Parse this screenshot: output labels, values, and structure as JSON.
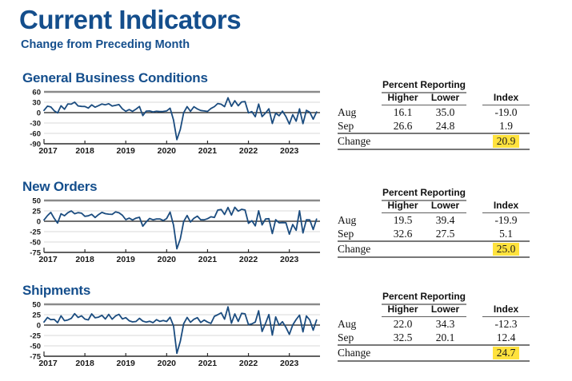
{
  "page": {
    "title": "Current Indicators",
    "subtitle": "Change from Preceding Month"
  },
  "colors": {
    "heading_blue": "#144e8c",
    "line_blue": "#1b4c7f",
    "highlight_yellow": "#ffe23d",
    "grid_gray": "#d8d8d8",
    "top_rule_gray": "#8a8a8a"
  },
  "sections": [
    {
      "title": "General Business Conditions",
      "table": {
        "group_header": "Percent Reporting",
        "col_headers": [
          "Higher",
          "Lower",
          "Index"
        ],
        "rows": [
          {
            "label": "Aug",
            "higher": "16.1",
            "lower": "35.0",
            "index": "-19.0"
          },
          {
            "label": "Sep",
            "higher": "26.6",
            "lower": "24.8",
            "index": "1.9"
          },
          {
            "label": "Change",
            "index": "20.9",
            "highlighted": true
          }
        ]
      }
    },
    {
      "title": "New Orders",
      "table": {
        "group_header": "Percent Reporting",
        "col_headers": [
          "Higher",
          "Lower",
          "Index"
        ],
        "rows": [
          {
            "label": "Aug",
            "higher": "19.5",
            "lower": "39.4",
            "index": "-19.9"
          },
          {
            "label": "Sep",
            "higher": "32.6",
            "lower": "27.5",
            "index": "5.1"
          },
          {
            "label": "Change",
            "index": "25.0",
            "highlighted": true
          }
        ]
      }
    },
    {
      "title": "Shipments",
      "table": {
        "group_header": "Percent Reporting",
        "col_headers": [
          "Higher",
          "Lower",
          "Index"
        ],
        "rows": [
          {
            "label": "Aug",
            "higher": "22.0",
            "lower": "34.3",
            "index": "-12.3"
          },
          {
            "label": "Sep",
            "higher": "32.5",
            "lower": "20.1",
            "index": "12.4"
          },
          {
            "label": "Change",
            "index": "24.7",
            "highlighted": true
          }
        ]
      }
    }
  ],
  "chart_data": [
    {
      "type": "line",
      "title": "General Business Conditions",
      "x_start": "2017-01",
      "x_end": "2023-09",
      "x_tick_labels": [
        "2017",
        "2018",
        "2019",
        "2020",
        "2021",
        "2022",
        "2023"
      ],
      "ylim": [
        -90,
        60
      ],
      "yticks": [
        60,
        30,
        0,
        -30,
        -60,
        -90
      ],
      "grid": true,
      "legend": "none",
      "values": [
        6.5,
        18.7,
        16.4,
        5.2,
        -1.0,
        19.8,
        9.8,
        25.2,
        24.4,
        30.2,
        19.4,
        18.0,
        17.7,
        13.1,
        22.5,
        15.8,
        20.1,
        25.0,
        22.6,
        25.6,
        19.0,
        21.1,
        23.3,
        10.9,
        3.9,
        8.8,
        3.7,
        10.1,
        17.8,
        -8.6,
        4.3,
        4.8,
        2.0,
        4.0,
        2.9,
        3.5,
        4.8,
        12.9,
        -21.5,
        -78.2,
        -48.5,
        -0.2,
        17.2,
        3.7,
        17.0,
        10.5,
        6.3,
        4.9,
        3.5,
        12.1,
        17.4,
        26.3,
        24.3,
        17.4,
        43.0,
        18.3,
        34.3,
        19.8,
        30.9,
        31.9,
        -0.7,
        3.1,
        -11.8,
        24.6,
        -11.6,
        -1.2,
        11.1,
        -31.3,
        -1.5,
        -9.1,
        4.5,
        -11.2,
        -32.9,
        -5.8,
        -24.6,
        10.8,
        -31.8,
        6.6,
        1.1,
        -19.0,
        1.9
      ]
    },
    {
      "type": "line",
      "title": "New Orders",
      "x_start": "2017-01",
      "x_end": "2023-09",
      "x_tick_labels": [
        "2017",
        "2018",
        "2019",
        "2020",
        "2021",
        "2022",
        "2023"
      ],
      "ylim": [
        -75,
        50
      ],
      "yticks": [
        50,
        25,
        0,
        -25,
        -50,
        -75
      ],
      "grid": true,
      "legend": "none",
      "values": [
        3.1,
        13.5,
        21.3,
        7.0,
        -4.4,
        18.1,
        13.3,
        20.6,
        24.9,
        18.0,
        20.7,
        19.5,
        11.9,
        13.1,
        16.8,
        9.0,
        16.0,
        21.3,
        18.2,
        17.1,
        16.5,
        22.5,
        20.4,
        14.5,
        3.9,
        7.5,
        3.0,
        7.5,
        9.7,
        -12.0,
        -1.5,
        6.7,
        3.5,
        5.5,
        5.6,
        1.7,
        6.6,
        22.1,
        -9.3,
        -66.3,
        -42.4,
        -0.6,
        13.9,
        -1.7,
        7.1,
        12.3,
        3.7,
        3.4,
        6.2,
        10.8,
        9.1,
        26.9,
        28.3,
        16.3,
        33.2,
        14.8,
        33.7,
        24.3,
        28.8,
        27.1,
        -5.0,
        1.4,
        -11.2,
        25.1,
        -8.8,
        5.3,
        6.2,
        -29.6,
        3.7,
        -3.8,
        -3.3,
        -3.6,
        -31.1,
        -7.8,
        -21.7,
        25.1,
        -28.0,
        3.6,
        3.3,
        -19.9,
        5.1
      ]
    },
    {
      "type": "line",
      "title": "Shipments",
      "x_start": "2017-01",
      "x_end": "2023-09",
      "x_tick_labels": [
        "2017",
        "2018",
        "2019",
        "2020",
        "2021",
        "2022",
        "2023"
      ],
      "ylim": [
        -75,
        50
      ],
      "yticks": [
        50,
        25,
        0,
        -25,
        -50,
        -75
      ],
      "grid": true,
      "legend": "none",
      "values": [
        7.3,
        18.2,
        13.0,
        13.7,
        5.7,
        22.3,
        10.5,
        12.4,
        16.2,
        27.5,
        18.4,
        22.4,
        14.4,
        12.5,
        27.0,
        17.5,
        19.1,
        23.5,
        14.6,
        25.7,
        14.3,
        22.0,
        26.0,
        14.9,
        17.9,
        10.4,
        7.7,
        8.6,
        16.3,
        9.7,
        7.2,
        9.3,
        5.8,
        13.0,
        8.8,
        11.0,
        8.6,
        18.9,
        -1.7,
        -68.1,
        -39.0,
        3.3,
        18.5,
        6.7,
        14.1,
        17.8,
        6.3,
        12.1,
        7.3,
        4.0,
        21.1,
        25.0,
        29.7,
        14.2,
        43.8,
        4.4,
        26.9,
        8.9,
        28.2,
        27.1,
        1.0,
        2.9,
        7.4,
        34.5,
        -15.4,
        4.0,
        25.3,
        -24.1,
        19.6,
        -0.3,
        8.0,
        -5.3,
        -22.4,
        0.1,
        13.4,
        23.9,
        -16.4,
        22.0,
        12.3,
        -12.3,
        12.4
      ]
    }
  ]
}
